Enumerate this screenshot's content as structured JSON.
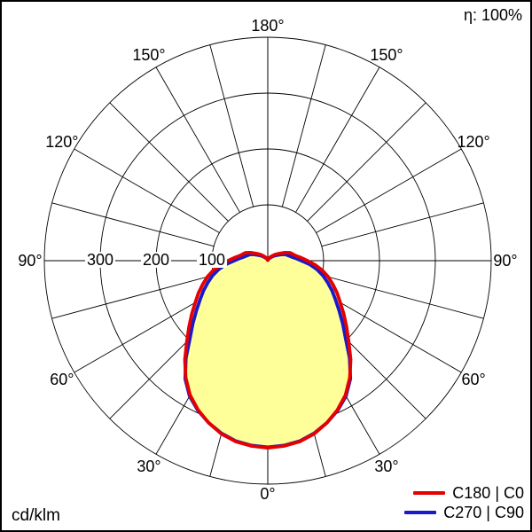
{
  "meta": {
    "efficiency_label": "η: 100%",
    "unit_label": "cd/klm"
  },
  "chart_data": {
    "type": "polar_intensity_curve",
    "title": "",
    "unit": "cd/klm",
    "efficiency": "100%",
    "rings_cd": [
      100,
      200,
      300,
      400
    ],
    "ring_step_cd": 100,
    "grid_angle_step_deg": 15,
    "gamma_start_deg": 0,
    "gamma_end_deg": 180,
    "gamma_step_deg": 5,
    "fill_color": "#ffff99",
    "grid_color": "#000000",
    "angle_labels": [
      {
        "text": "180°",
        "gamma": 180,
        "side": "center"
      },
      {
        "text": "150°",
        "gamma": 150,
        "side": "left"
      },
      {
        "text": "150°",
        "gamma": 150,
        "side": "right"
      },
      {
        "text": "120°",
        "gamma": 120,
        "side": "left"
      },
      {
        "text": "120°",
        "gamma": 120,
        "side": "right"
      },
      {
        "text": "90°",
        "gamma": 90,
        "side": "left"
      },
      {
        "text": "90°",
        "gamma": 90,
        "side": "right"
      },
      {
        "text": "60°",
        "gamma": 60,
        "side": "left"
      },
      {
        "text": "60°",
        "gamma": 60,
        "side": "right"
      },
      {
        "text": "30°",
        "gamma": 30,
        "side": "left"
      },
      {
        "text": "30°",
        "gamma": 30,
        "side": "right"
      },
      {
        "text": "0°",
        "gamma": 0,
        "side": "center"
      }
    ],
    "radial_tick_labels": [
      {
        "text": "300",
        "value": 300
      },
      {
        "text": "200",
        "value": 200
      },
      {
        "text": "100",
        "value": 100
      }
    ],
    "series": [
      {
        "name": "C180 | C0",
        "color": "#e60000",
        "gamma_deg_step": 5,
        "values_cd_per_klm": [
          335,
          333,
          329,
          321,
          309,
          295,
          278,
          256,
          231,
          205,
          184,
          166,
          150,
          137,
          124,
          112,
          99,
          85,
          71,
          60,
          51,
          46,
          42,
          34,
          26,
          21,
          17,
          13,
          10,
          8,
          6,
          5,
          3,
          2,
          2,
          1,
          1
        ]
      },
      {
        "name": "C270 | C90",
        "color": "#1a1acc",
        "gamma_deg_step": 5,
        "values_cd_per_klm": [
          334,
          332,
          328,
          320,
          309,
          296,
          280,
          258,
          228,
          197,
          175,
          156,
          140,
          127,
          114,
          102,
          89,
          75,
          60,
          50,
          42,
          37,
          33,
          26,
          20,
          16,
          12,
          9,
          7,
          5,
          4,
          3,
          2,
          2,
          1,
          1,
          1
        ]
      }
    ]
  }
}
